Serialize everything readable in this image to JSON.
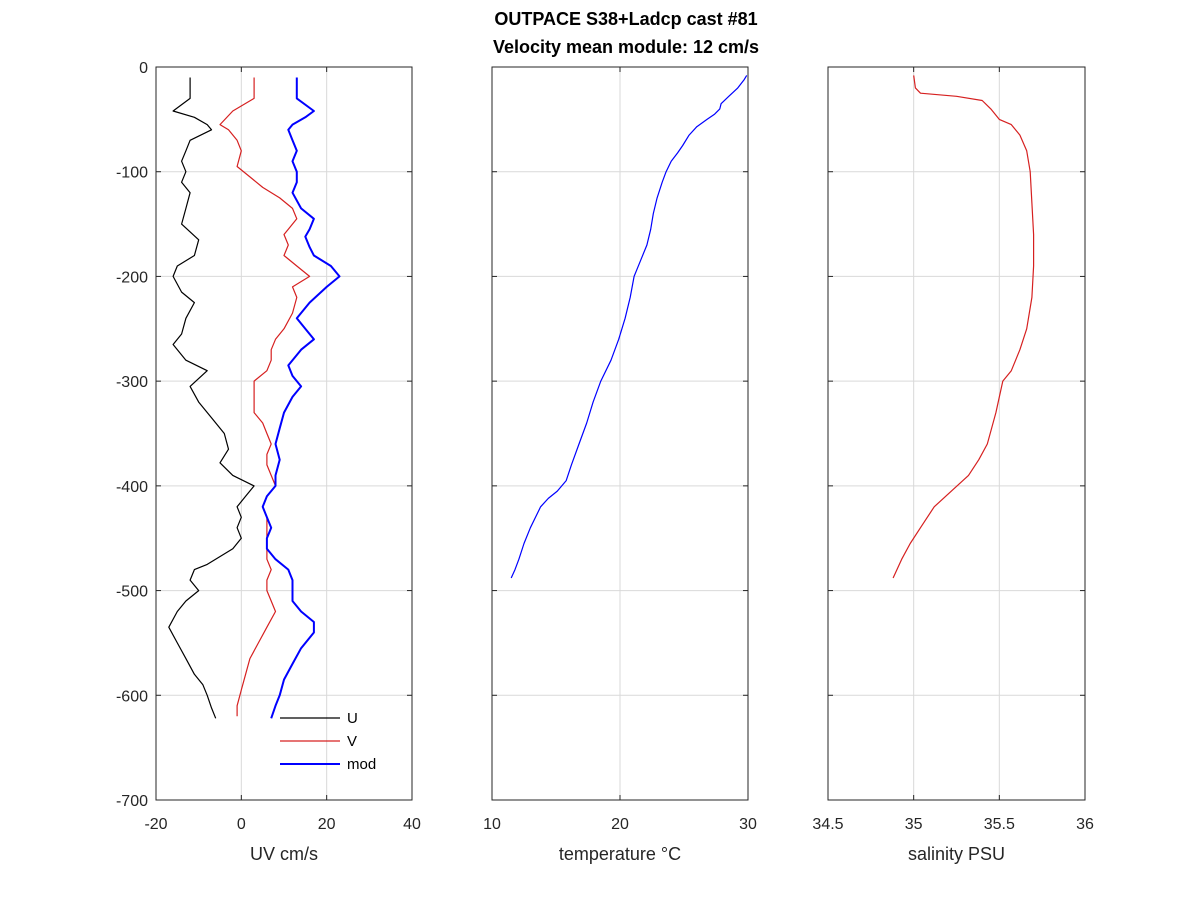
{
  "title_line1": "OUTPACE S38+Ladcp cast #81",
  "title_line2": "Velocity mean module:  12 cm/s",
  "chart_data": [
    {
      "type": "line",
      "xlabel": "UV cm/s",
      "ylabel": "",
      "xlim": [
        -20,
        40
      ],
      "ylim": [
        -700,
        0
      ],
      "xticks": [
        -20,
        0,
        20,
        40
      ],
      "yticks": [
        0,
        -100,
        -200,
        -300,
        -400,
        -500,
        -600,
        -700
      ],
      "grid": true,
      "legend": "bottom-right",
      "series": [
        {
          "name": "U",
          "color": "#000000",
          "points": [
            [
              -12,
              -10
            ],
            [
              -12,
              -30
            ],
            [
              -16,
              -42
            ],
            [
              -11,
              -48
            ],
            [
              -8,
              -55
            ],
            [
              -7,
              -60
            ],
            [
              -12,
              -70
            ],
            [
              -13,
              -80
            ],
            [
              -14,
              -90
            ],
            [
              -13,
              -100
            ],
            [
              -14,
              -110
            ],
            [
              -12,
              -120
            ],
            [
              -13,
              -135
            ],
            [
              -14,
              -150
            ],
            [
              -10,
              -165
            ],
            [
              -11,
              -180
            ],
            [
              -15,
              -190
            ],
            [
              -16,
              -200
            ],
            [
              -14,
              -215
            ],
            [
              -11,
              -225
            ],
            [
              -13,
              -240
            ],
            [
              -14,
              -255
            ],
            [
              -16,
              -265
            ],
            [
              -13,
              -280
            ],
            [
              -8,
              -290
            ],
            [
              -12,
              -305
            ],
            [
              -10,
              -320
            ],
            [
              -7,
              -335
            ],
            [
              -4,
              -350
            ],
            [
              -3,
              -365
            ],
            [
              -5,
              -378
            ],
            [
              -2,
              -390
            ],
            [
              3,
              -400
            ],
            [
              1,
              -410
            ],
            [
              -1,
              -420
            ],
            [
              0,
              -430
            ],
            [
              -1,
              -440
            ],
            [
              0,
              -450
            ],
            [
              -2,
              -460
            ],
            [
              -8,
              -475
            ],
            [
              -11,
              -480
            ],
            [
              -12,
              -490
            ],
            [
              -10,
              -500
            ],
            [
              -13,
              -510
            ],
            [
              -15,
              -520
            ],
            [
              -17,
              -535
            ],
            [
              -15,
              -550
            ],
            [
              -13,
              -565
            ],
            [
              -11,
              -580
            ],
            [
              -9,
              -590
            ],
            [
              -8,
              -600
            ],
            [
              -7,
              -612
            ],
            [
              -6,
              -622
            ]
          ]
        },
        {
          "name": "V",
          "color": "#d62020",
          "points": [
            [
              3,
              -10
            ],
            [
              3,
              -30
            ],
            [
              -2,
              -42
            ],
            [
              -5,
              -55
            ],
            [
              -3,
              -60
            ],
            [
              -1,
              -70
            ],
            [
              0,
              -80
            ],
            [
              -1,
              -95
            ],
            [
              2,
              -105
            ],
            [
              5,
              -115
            ],
            [
              9,
              -125
            ],
            [
              12,
              -135
            ],
            [
              13,
              -145
            ],
            [
              11,
              -155
            ],
            [
              10,
              -160
            ],
            [
              11,
              -170
            ],
            [
              10,
              -180
            ],
            [
              13,
              -190
            ],
            [
              16,
              -200
            ],
            [
              12,
              -210
            ],
            [
              13,
              -220
            ],
            [
              12,
              -235
            ],
            [
              10,
              -250
            ],
            [
              8,
              -260
            ],
            [
              7,
              -270
            ],
            [
              7,
              -280
            ],
            [
              6,
              -290
            ],
            [
              3,
              -300
            ],
            [
              3,
              -315
            ],
            [
              3,
              -330
            ],
            [
              5,
              -340
            ],
            [
              6,
              -350
            ],
            [
              7,
              -360
            ],
            [
              6,
              -370
            ],
            [
              6,
              -380
            ],
            [
              7,
              -390
            ],
            [
              8,
              -400
            ],
            [
              6,
              -410
            ],
            [
              5,
              -420
            ],
            [
              6,
              -430
            ],
            [
              6,
              -440
            ],
            [
              6,
              -450
            ],
            [
              6,
              -460
            ],
            [
              6,
              -470
            ],
            [
              7,
              -480
            ],
            [
              6,
              -490
            ],
            [
              6,
              -500
            ],
            [
              7,
              -510
            ],
            [
              8,
              -520
            ],
            [
              6,
              -535
            ],
            [
              4,
              -550
            ],
            [
              2,
              -565
            ],
            [
              1,
              -580
            ],
            [
              0,
              -595
            ],
            [
              -1,
              -610
            ],
            [
              -1,
              -620
            ]
          ]
        },
        {
          "name": "mod",
          "color": "#0000ff",
          "points": [
            [
              13,
              -10
            ],
            [
              13,
              -30
            ],
            [
              17,
              -42
            ],
            [
              15,
              -48
            ],
            [
              12,
              -55
            ],
            [
              11,
              -60
            ],
            [
              12,
              -70
            ],
            [
              13,
              -80
            ],
            [
              12,
              -90
            ],
            [
              13,
              -100
            ],
            [
              13,
              -110
            ],
            [
              12,
              -120
            ],
            [
              14,
              -135
            ],
            [
              17,
              -145
            ],
            [
              16,
              -155
            ],
            [
              15,
              -162
            ],
            [
              16,
              -172
            ],
            [
              17,
              -180
            ],
            [
              21,
              -190
            ],
            [
              23,
              -200
            ],
            [
              20,
              -210
            ],
            [
              16,
              -225
            ],
            [
              13,
              -240
            ],
            [
              15,
              -250
            ],
            [
              17,
              -260
            ],
            [
              14,
              -270
            ],
            [
              11,
              -285
            ],
            [
              12,
              -295
            ],
            [
              14,
              -305
            ],
            [
              12,
              -315
            ],
            [
              10,
              -330
            ],
            [
              9,
              -345
            ],
            [
              8,
              -360
            ],
            [
              9,
              -375
            ],
            [
              8,
              -390
            ],
            [
              8,
              -400
            ],
            [
              6,
              -410
            ],
            [
              5,
              -420
            ],
            [
              6,
              -430
            ],
            [
              7,
              -440
            ],
            [
              6,
              -450
            ],
            [
              6,
              -460
            ],
            [
              8,
              -470
            ],
            [
              11,
              -480
            ],
            [
              12,
              -490
            ],
            [
              12,
              -500
            ],
            [
              12,
              -510
            ],
            [
              14,
              -520
            ],
            [
              17,
              -530
            ],
            [
              17,
              -540
            ],
            [
              14,
              -555
            ],
            [
              12,
              -570
            ],
            [
              10,
              -585
            ],
            [
              9,
              -600
            ],
            [
              8,
              -610
            ],
            [
              7,
              -622
            ]
          ]
        }
      ]
    },
    {
      "type": "line",
      "xlabel": "temperature °C",
      "ylabel": "",
      "xlim": [
        10,
        30
      ],
      "ylim": [
        -700,
        0
      ],
      "xticks": [
        10,
        20,
        30
      ],
      "yticks": [
        0,
        -100,
        -200,
        -300,
        -400,
        -500,
        -600,
        -700
      ],
      "grid": true,
      "series": [
        {
          "color": "#0000ff",
          "points": [
            [
              29.9,
              -8
            ],
            [
              29.7,
              -12
            ],
            [
              29.2,
              -20
            ],
            [
              28.5,
              -28
            ],
            [
              27.9,
              -35
            ],
            [
              27.8,
              -40
            ],
            [
              27.4,
              -45
            ],
            [
              26.8,
              -50
            ],
            [
              26.0,
              -57
            ],
            [
              25.4,
              -65
            ],
            [
              24.9,
              -75
            ],
            [
              24.5,
              -82
            ],
            [
              24.0,
              -90
            ],
            [
              23.6,
              -100
            ],
            [
              23.3,
              -110
            ],
            [
              22.9,
              -125
            ],
            [
              22.6,
              -140
            ],
            [
              22.4,
              -155
            ],
            [
              22.1,
              -170
            ],
            [
              21.6,
              -185
            ],
            [
              21.1,
              -200
            ],
            [
              20.8,
              -220
            ],
            [
              20.4,
              -240
            ],
            [
              19.9,
              -260
            ],
            [
              19.3,
              -280
            ],
            [
              18.5,
              -300
            ],
            [
              17.9,
              -320
            ],
            [
              17.4,
              -340
            ],
            [
              16.8,
              -360
            ],
            [
              16.2,
              -380
            ],
            [
              15.8,
              -395
            ],
            [
              15.1,
              -405
            ],
            [
              14.4,
              -412
            ],
            [
              13.8,
              -420
            ],
            [
              13.4,
              -430
            ],
            [
              13.0,
              -440
            ],
            [
              12.5,
              -455
            ],
            [
              12.1,
              -470
            ],
            [
              11.8,
              -480
            ],
            [
              11.5,
              -488
            ]
          ]
        }
      ]
    },
    {
      "type": "line",
      "xlabel": "salinity PSU",
      "ylabel": "",
      "xlim": [
        34.5,
        36
      ],
      "ylim": [
        -700,
        0
      ],
      "xticks": [
        34.5,
        35,
        35.5,
        36
      ],
      "xticklabels": [
        "34.5",
        "35",
        "35.5",
        "36"
      ],
      "yticks": [
        0,
        -100,
        -200,
        -300,
        -400,
        -500,
        -600,
        -700
      ],
      "grid": true,
      "series": [
        {
          "color": "#d62020",
          "points": [
            [
              35.0,
              -8
            ],
            [
              35.01,
              -20
            ],
            [
              35.04,
              -25
            ],
            [
              35.25,
              -28
            ],
            [
              35.4,
              -32
            ],
            [
              35.45,
              -40
            ],
            [
              35.5,
              -50
            ],
            [
              35.57,
              -55
            ],
            [
              35.62,
              -65
            ],
            [
              35.66,
              -80
            ],
            [
              35.68,
              -100
            ],
            [
              35.69,
              -130
            ],
            [
              35.7,
              -160
            ],
            [
              35.7,
              -190
            ],
            [
              35.69,
              -220
            ],
            [
              35.66,
              -250
            ],
            [
              35.62,
              -270
            ],
            [
              35.57,
              -290
            ],
            [
              35.52,
              -300
            ],
            [
              35.48,
              -330
            ],
            [
              35.43,
              -360
            ],
            [
              35.38,
              -375
            ],
            [
              35.32,
              -390
            ],
            [
              35.22,
              -405
            ],
            [
              35.12,
              -420
            ],
            [
              35.04,
              -440
            ],
            [
              34.98,
              -455
            ],
            [
              34.93,
              -470
            ],
            [
              34.88,
              -488
            ]
          ]
        }
      ]
    }
  ]
}
